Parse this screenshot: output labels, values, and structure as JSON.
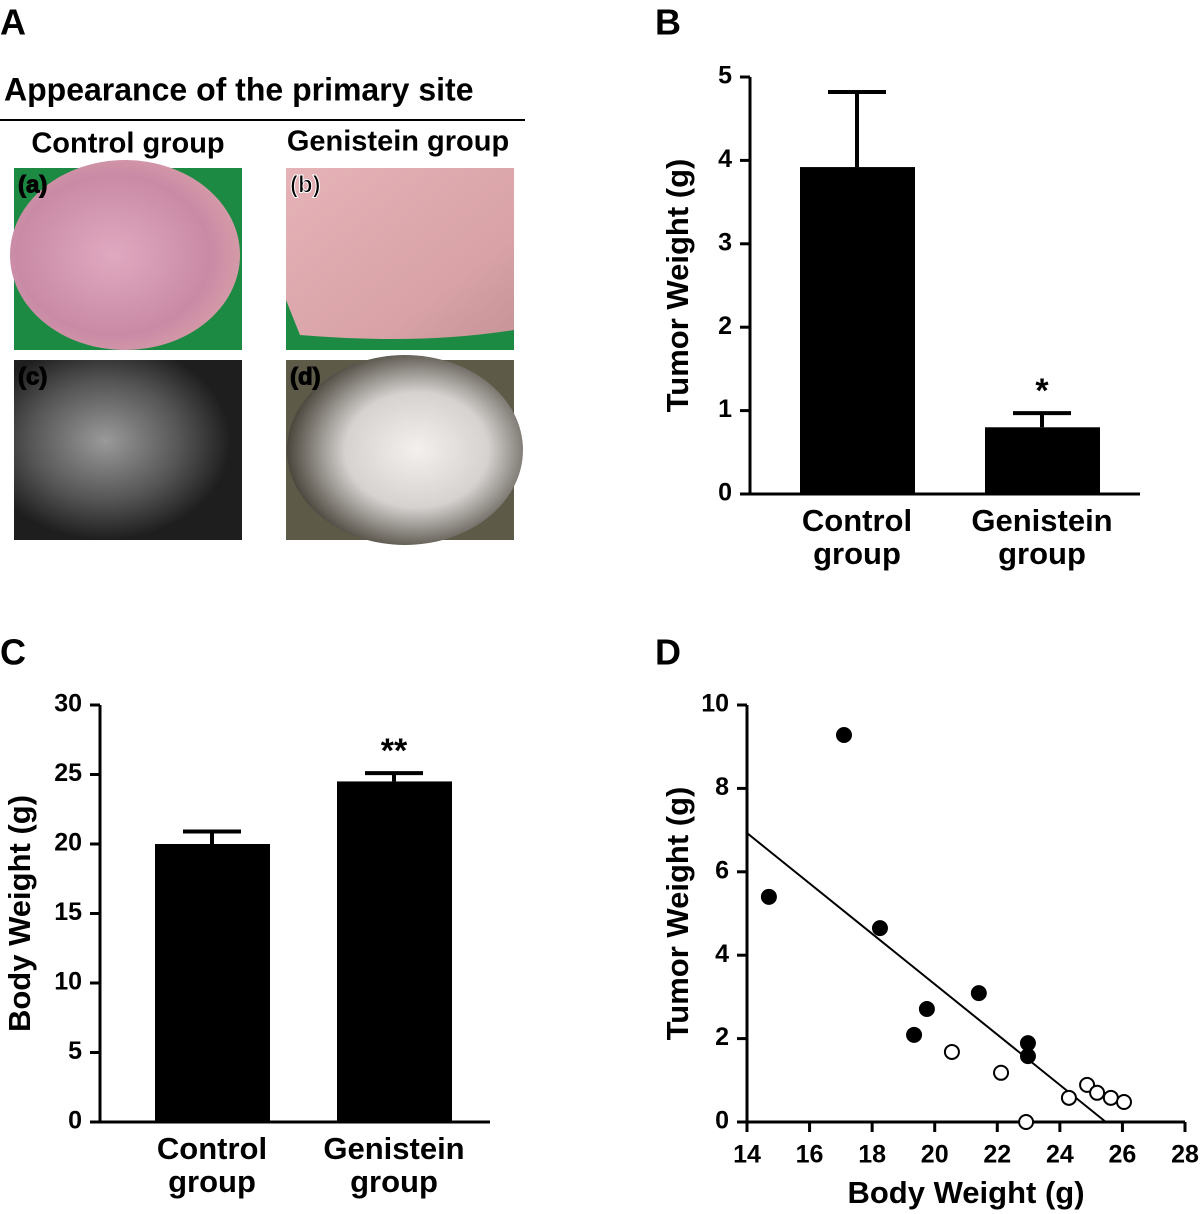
{
  "photo_panel": {
    "label": "A",
    "title": "Appearance of the primary site",
    "columns": [
      "Control group",
      "Genistein group"
    ],
    "photos": [
      "(a)",
      "(b)",
      "(c)",
      "(d)"
    ]
  },
  "chart_data": [
    {
      "type": "bar",
      "panel_label": "B",
      "ylabel": "Tumor Weight (g)",
      "categories": [
        "Control group",
        "Genistein group"
      ],
      "values": [
        3.92,
        0.8
      ],
      "errors": [
        0.9,
        0.17
      ],
      "color": "#000000",
      "annotations": [
        null,
        "*"
      ],
      "ylim": [
        0,
        5
      ],
      "yticks": [
        0,
        1,
        2,
        3,
        4,
        5
      ]
    },
    {
      "type": "bar",
      "panel_label": "C",
      "ylabel": "Body Weight (g)",
      "categories": [
        "Control group",
        "Genistein group"
      ],
      "values": [
        20.0,
        24.5
      ],
      "errors": [
        0.9,
        0.6
      ],
      "color": "#000000",
      "annotations": [
        null,
        "**"
      ],
      "ylim": [
        0,
        30
      ],
      "yticks": [
        0,
        5,
        10,
        15,
        20,
        25,
        30
      ]
    },
    {
      "type": "scatter",
      "panel_label": "D",
      "xlabel": "Body Weight (g)",
      "ylabel": "Tumor Weight (g)",
      "series": [
        {
          "color": "#000000",
          "filled": true,
          "x": [
            14.7,
            17.1,
            18.25,
            19.34,
            19.75,
            21.41,
            22.98,
            22.98
          ],
          "y": [
            5.4,
            9.28,
            4.65,
            2.09,
            2.71,
            3.09,
            1.89,
            1.58
          ]
        },
        {
          "color": "#000000",
          "filled": false,
          "x": [
            20.55,
            22.12,
            22.92,
            24.29,
            24.87,
            25.19,
            25.63,
            26.05
          ],
          "y": [
            1.68,
            1.18,
            0.0,
            0.58,
            0.89,
            0.7,
            0.58,
            0.48
          ]
        }
      ],
      "trendline": {
        "x": [
          14,
          25.47
        ],
        "y": [
          6.93,
          0
        ]
      },
      "xlim": [
        14,
        28
      ],
      "xticks": [
        14,
        16,
        18,
        20,
        22,
        24,
        26,
        28
      ],
      "ylim": [
        0,
        10
      ],
      "yticks": [
        0,
        2,
        4,
        6,
        8,
        10
      ]
    }
  ]
}
